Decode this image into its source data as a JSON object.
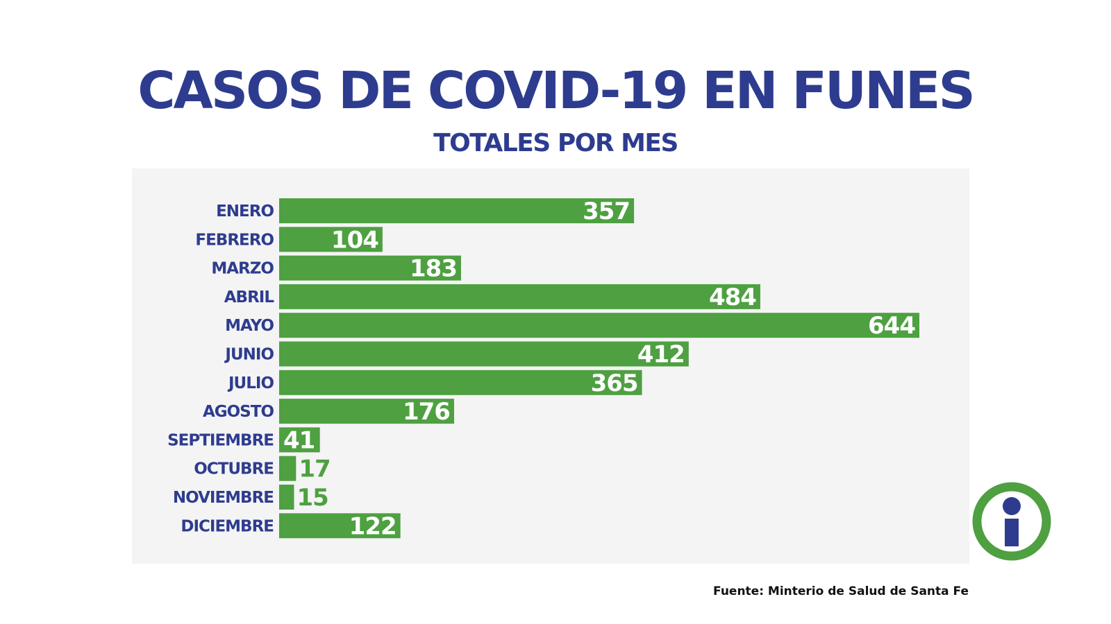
{
  "colors": {
    "title": "#2e3c8f",
    "bar": "#4ea041",
    "panel": "#f4f4f4",
    "value_text": "#ffffff",
    "logo_ring": "#4ea041",
    "logo_glyph": "#2e3c8f"
  },
  "logo": {
    "icon": "info-icon"
  },
  "source": "Fuente: Minterio de Salud de Santa Fe",
  "chart_data": {
    "type": "bar",
    "orientation": "horizontal",
    "title": "CASOS DE COVID-19 EN FUNES",
    "subtitle": "TOTALES POR MES",
    "categories": [
      "ENERO",
      "FEBRERO",
      "MARZO",
      "ABRIL",
      "MAYO",
      "JUNIO",
      "JULIO",
      "AGOSTO",
      "SEPTIEMBRE",
      "OCTUBRE",
      "NOVIEMBRE",
      "DICIEMBRE"
    ],
    "values": [
      357,
      104,
      183,
      484,
      644,
      412,
      365,
      176,
      41,
      17,
      15,
      122
    ],
    "value_labels": [
      "357",
      "104",
      "183",
      "484",
      "644",
      "412",
      "365",
      "176",
      "41",
      "17",
      "15",
      "122"
    ],
    "xlim": [
      0,
      644
    ],
    "grid": false,
    "legend": "none",
    "xlabel": "",
    "ylabel": ""
  }
}
